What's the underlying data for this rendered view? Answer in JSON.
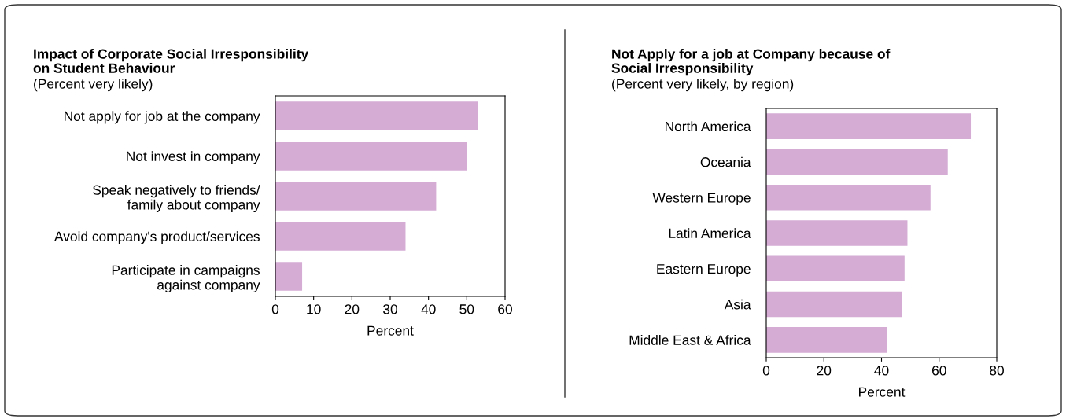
{
  "chart_data": [
    {
      "type": "bar",
      "orientation": "horizontal",
      "title": "Impact of Corporate Social Irresponsibility\non Student Behaviour",
      "subtitle": "(Percent very likely)",
      "xlabel": "Percent",
      "categories": [
        "Not apply for job at the company",
        "Not invest in company",
        "Speak negatively to friends/\nfamily about company",
        "Avoid company's product/services",
        "Participate in campaigns\nagainst company"
      ],
      "values": [
        53,
        50,
        42,
        34,
        7
      ],
      "color": "#d4acd4",
      "xlim": [
        0,
        60
      ],
      "xticks": [
        0,
        10,
        20,
        30,
        40,
        50,
        60
      ],
      "grid": false
    },
    {
      "type": "bar",
      "orientation": "horizontal",
      "title": "Not Apply for a job at Company because of\nSocial Irresponsibility",
      "subtitle": "(Percent very likely, by region)",
      "xlabel": "Percent",
      "categories": [
        "North America",
        "Oceania",
        "Western Europe",
        "Latin America",
        "Eastern Europe",
        "Asia",
        "Middle East & Africa"
      ],
      "values": [
        71,
        63,
        57,
        49,
        48,
        47,
        42
      ],
      "color": "#d4acd4",
      "xlim": [
        0,
        80
      ],
      "xticks": [
        0,
        20,
        40,
        60,
        80
      ],
      "grid": false
    }
  ]
}
